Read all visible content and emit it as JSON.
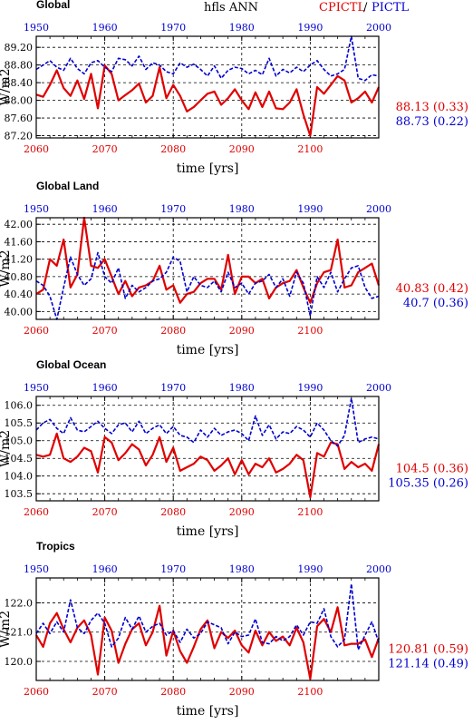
{
  "header": {
    "variable": "hfls ANN",
    "exp_label": "CPICTL",
    "slash": "/",
    "ctl_label": "PICTL"
  },
  "colors": {
    "exp": "#e00000",
    "ctl": "#0000d0"
  },
  "chart_data": [
    {
      "type": "line",
      "title": "Global",
      "xlabel": "time [yrs]",
      "ylabel": "W/m2",
      "x_bottom": [
        2060,
        2061,
        2062,
        2063,
        2064,
        2065,
        2066,
        2067,
        2068,
        2069,
        2070,
        2071,
        2072,
        2073,
        2074,
        2075,
        2076,
        2077,
        2078,
        2079,
        2080,
        2081,
        2082,
        2083,
        2084,
        2085,
        2086,
        2087,
        2088,
        2089,
        2090,
        2091,
        2092,
        2093,
        2094,
        2095,
        2096,
        2097,
        2098,
        2099,
        2100,
        2101,
        2102,
        2103,
        2104,
        2105,
        2106,
        2107,
        2108,
        2109,
        2110
      ],
      "x_top": [
        1950,
        1951,
        1952,
        1953,
        1954,
        1955,
        1956,
        1957,
        1958,
        1959,
        1960,
        1961,
        1962,
        1963,
        1964,
        1965,
        1966,
        1967,
        1968,
        1969,
        1970,
        1971,
        1972,
        1973,
        1974,
        1975,
        1976,
        1977,
        1978,
        1979,
        1980,
        1981,
        1982,
        1983,
        1984,
        1985,
        1986,
        1987,
        1988,
        1989,
        1990,
        1991,
        1992,
        1993,
        1994,
        1995,
        1996,
        1997,
        1998,
        1999,
        2000
      ],
      "xticks_bottom": [
        "2060",
        "2070",
        "2080",
        "2090",
        "2100"
      ],
      "xticks_top": [
        "1950",
        "1960",
        "1970",
        "1980",
        "1990",
        "2000"
      ],
      "yticks": [
        "87.20",
        "87.60",
        "88.00",
        "88.40",
        "88.80",
        "89.20"
      ],
      "ylim": [
        87.15,
        89.45
      ],
      "series": [
        {
          "name": "CPICTL",
          "values": [
            88.13,
            88.08,
            88.35,
            88.68,
            88.28,
            88.1,
            88.45,
            88.03,
            88.6,
            87.82,
            88.79,
            88.6,
            88.0,
            88.12,
            88.23,
            88.38,
            87.95,
            88.1,
            88.75,
            88.05,
            88.35,
            88.1,
            87.75,
            87.85,
            88.0,
            88.15,
            88.2,
            87.9,
            88.05,
            88.25,
            88.0,
            87.8,
            88.18,
            87.85,
            88.2,
            87.82,
            87.8,
            87.95,
            88.25,
            87.68,
            87.2,
            88.3,
            88.15,
            88.35,
            88.55,
            88.45,
            87.95,
            88.05,
            88.2,
            87.95,
            88.3
          ]
        },
        {
          "name": "PICTL",
          "values": [
            88.7,
            88.8,
            88.9,
            88.75,
            88.68,
            88.95,
            88.72,
            88.6,
            88.85,
            88.9,
            88.75,
            88.65,
            88.95,
            88.92,
            88.78,
            89.0,
            88.7,
            88.85,
            88.8,
            88.65,
            88.6,
            88.85,
            88.75,
            88.82,
            88.7,
            88.55,
            88.78,
            88.5,
            88.68,
            88.75,
            88.72,
            88.6,
            88.68,
            88.58,
            88.95,
            88.55,
            88.7,
            88.62,
            88.75,
            88.65,
            88.8,
            88.9,
            88.7,
            88.55,
            88.6,
            88.7,
            89.45,
            88.5,
            88.45,
            88.58,
            88.55
          ]
        }
      ],
      "stats": [
        {
          "series": "CPICTL",
          "text": "88.13 (0.33)"
        },
        {
          "series": "PICTL",
          "text": "88.73 (0.22)"
        }
      ]
    },
    {
      "type": "line",
      "title": "Global Land",
      "xlabel": "time [yrs]",
      "ylabel": "W/m2",
      "x_bottom": [
        2060,
        2061,
        2062,
        2063,
        2064,
        2065,
        2066,
        2067,
        2068,
        2069,
        2070,
        2071,
        2072,
        2073,
        2074,
        2075,
        2076,
        2077,
        2078,
        2079,
        2080,
        2081,
        2082,
        2083,
        2084,
        2085,
        2086,
        2087,
        2088,
        2089,
        2090,
        2091,
        2092,
        2093,
        2094,
        2095,
        2096,
        2097,
        2098,
        2099,
        2100,
        2101,
        2102,
        2103,
        2104,
        2105,
        2106,
        2107,
        2108,
        2109,
        2110
      ],
      "x_top": [
        1950,
        1951,
        1952,
        1953,
        1954,
        1955,
        1956,
        1957,
        1958,
        1959,
        1960,
        1961,
        1962,
        1963,
        1964,
        1965,
        1966,
        1967,
        1968,
        1969,
        1970,
        1971,
        1972,
        1973,
        1974,
        1975,
        1976,
        1977,
        1978,
        1979,
        1980,
        1981,
        1982,
        1983,
        1984,
        1985,
        1986,
        1987,
        1988,
        1989,
        1990,
        1991,
        1992,
        1993,
        1994,
        1995,
        1996,
        1997,
        1998,
        1999,
        2000
      ],
      "xticks_bottom": [
        "2060",
        "2070",
        "2080",
        "2090",
        "2100"
      ],
      "xticks_top": [
        "1950",
        "1960",
        "1970",
        "1980",
        "1990",
        "2000"
      ],
      "yticks": [
        "40.00",
        "40.40",
        "40.80",
        "41.20",
        "41.60",
        "42.00"
      ],
      "ylim": [
        39.82,
        42.15
      ],
      "series": [
        {
          "name": "CPICTL",
          "values": [
            40.4,
            40.5,
            41.2,
            41.05,
            41.65,
            40.55,
            40.85,
            42.15,
            41.05,
            41.0,
            41.2,
            40.8,
            40.4,
            40.7,
            40.35,
            40.55,
            40.6,
            40.7,
            41.05,
            40.5,
            40.6,
            40.2,
            40.4,
            40.45,
            40.65,
            40.75,
            40.75,
            40.5,
            41.3,
            40.4,
            40.8,
            40.8,
            40.65,
            40.75,
            40.3,
            40.55,
            40.65,
            40.7,
            40.95,
            40.55,
            40.2,
            40.65,
            40.9,
            40.95,
            41.65,
            40.55,
            40.6,
            40.9,
            41.0,
            41.1,
            40.6
          ]
        },
        {
          "name": "PICTL",
          "values": [
            40.7,
            40.6,
            40.35,
            39.82,
            40.55,
            41.25,
            40.85,
            40.6,
            40.75,
            41.35,
            40.8,
            40.65,
            41.0,
            40.3,
            40.6,
            40.45,
            40.55,
            40.7,
            40.75,
            40.9,
            41.25,
            41.15,
            40.45,
            40.8,
            40.6,
            40.55,
            40.7,
            40.45,
            40.9,
            40.55,
            40.65,
            40.4,
            40.65,
            40.7,
            40.85,
            40.55,
            40.75,
            40.35,
            40.9,
            40.65,
            39.9,
            40.8,
            40.55,
            40.9,
            40.45,
            40.75,
            41.0,
            41.05,
            40.55,
            40.3,
            40.35
          ]
        }
      ],
      "stats": [
        {
          "series": "CPICTL",
          "text": "40.83 (0.42)"
        },
        {
          "series": "PICTL",
          "text": "40.7 (0.36)"
        }
      ]
    },
    {
      "type": "line",
      "title": "Global Ocean",
      "xlabel": "time [yrs]",
      "ylabel": "W/m2",
      "x_bottom": [
        2060,
        2061,
        2062,
        2063,
        2064,
        2065,
        2066,
        2067,
        2068,
        2069,
        2070,
        2071,
        2072,
        2073,
        2074,
        2075,
        2076,
        2077,
        2078,
        2079,
        2080,
        2081,
        2082,
        2083,
        2084,
        2085,
        2086,
        2087,
        2088,
        2089,
        2090,
        2091,
        2092,
        2093,
        2094,
        2095,
        2096,
        2097,
        2098,
        2099,
        2100,
        2101,
        2102,
        2103,
        2104,
        2105,
        2106,
        2107,
        2108,
        2109,
        2110
      ],
      "x_top": [
        1950,
        1951,
        1952,
        1953,
        1954,
        1955,
        1956,
        1957,
        1958,
        1959,
        1960,
        1961,
        1962,
        1963,
        1964,
        1965,
        1966,
        1967,
        1968,
        1969,
        1970,
        1971,
        1972,
        1973,
        1974,
        1975,
        1976,
        1977,
        1978,
        1979,
        1980,
        1981,
        1982,
        1983,
        1984,
        1985,
        1986,
        1987,
        1988,
        1989,
        1990,
        1991,
        1992,
        1993,
        1994,
        1995,
        1996,
        1997,
        1998,
        1999,
        2000
      ],
      "xticks_bottom": [
        "2060",
        "2070",
        "2080",
        "2090",
        "2100"
      ],
      "xticks_top": [
        "1950",
        "1960",
        "1970",
        "1980",
        "1990",
        "2000"
      ],
      "yticks": [
        "103.5",
        "104.0",
        "104.5",
        "105.0",
        "105.5",
        "106.0"
      ],
      "ylim": [
        103.3,
        106.25
      ],
      "series": [
        {
          "name": "CPICTL",
          "values": [
            104.6,
            104.55,
            104.6,
            105.2,
            104.5,
            104.4,
            104.55,
            104.8,
            104.7,
            104.1,
            105.1,
            104.95,
            104.45,
            104.65,
            104.9,
            104.75,
            104.3,
            104.6,
            105.1,
            104.4,
            104.8,
            104.15,
            104.25,
            104.35,
            104.55,
            104.45,
            104.15,
            104.3,
            104.5,
            104.05,
            104.45,
            104.05,
            104.35,
            104.25,
            104.5,
            104.1,
            104.2,
            104.35,
            104.6,
            104.45,
            103.4,
            104.65,
            104.55,
            104.95,
            104.9,
            104.2,
            104.4,
            104.25,
            104.35,
            104.15,
            104.9
          ]
        },
        {
          "name": "PICTL",
          "values": [
            105.3,
            105.5,
            105.6,
            105.35,
            105.2,
            105.65,
            105.3,
            105.25,
            105.4,
            105.55,
            105.35,
            105.2,
            105.45,
            105.5,
            105.25,
            105.55,
            105.2,
            105.35,
            105.45,
            105.2,
            105.4,
            105.15,
            105.1,
            104.95,
            105.3,
            105.1,
            105.35,
            105.15,
            105.25,
            105.3,
            105.2,
            105.0,
            105.7,
            105.15,
            105.45,
            105.05,
            105.25,
            105.2,
            105.4,
            105.3,
            105.1,
            105.5,
            105.3,
            105.0,
            104.85,
            105.15,
            106.2,
            104.95,
            105.05,
            105.1,
            105.05
          ]
        }
      ],
      "stats": [
        {
          "series": "CPICTL",
          "text": "104.5 (0.36)"
        },
        {
          "series": "PICTL",
          "text": "105.35 (0.26)"
        }
      ]
    },
    {
      "type": "line",
      "title": "Tropics",
      "xlabel": "time [yrs]",
      "ylabel": "W/m2",
      "x_bottom": [
        2060,
        2061,
        2062,
        2063,
        2064,
        2065,
        2066,
        2067,
        2068,
        2069,
        2070,
        2071,
        2072,
        2073,
        2074,
        2075,
        2076,
        2077,
        2078,
        2079,
        2080,
        2081,
        2082,
        2083,
        2084,
        2085,
        2086,
        2087,
        2088,
        2089,
        2090,
        2091,
        2092,
        2093,
        2094,
        2095,
        2096,
        2097,
        2098,
        2099,
        2100,
        2101,
        2102,
        2103,
        2104,
        2105,
        2106,
        2107,
        2108,
        2109,
        2110
      ],
      "x_top": [
        1950,
        1951,
        1952,
        1953,
        1954,
        1955,
        1956,
        1957,
        1958,
        1959,
        1960,
        1961,
        1962,
        1963,
        1964,
        1965,
        1966,
        1967,
        1968,
        1969,
        1970,
        1971,
        1972,
        1973,
        1974,
        1975,
        1976,
        1977,
        1978,
        1979,
        1980,
        1981,
        1982,
        1983,
        1984,
        1985,
        1986,
        1987,
        1988,
        1989,
        1990,
        1991,
        1992,
        1993,
        1994,
        1995,
        1996,
        1997,
        1998,
        1999,
        2000
      ],
      "xticks_bottom": [
        "2060",
        "2070",
        "2080",
        "2090",
        "2100"
      ],
      "xticks_top": [
        "1950",
        "1960",
        "1970",
        "1980",
        "1990",
        "2000"
      ],
      "yticks": [
        "120.0",
        "121.0",
        "122.0"
      ],
      "ylim": [
        119.35,
        122.85
      ],
      "series": [
        {
          "name": "CPICTL",
          "values": [
            120.9,
            120.5,
            121.3,
            121.65,
            121.1,
            120.65,
            121.15,
            121.4,
            120.9,
            119.55,
            121.5,
            121.05,
            119.95,
            120.6,
            121.1,
            121.3,
            120.55,
            121.0,
            121.9,
            120.2,
            121.05,
            120.35,
            119.95,
            120.5,
            121.1,
            121.4,
            120.45,
            121.0,
            120.8,
            121.05,
            120.55,
            120.3,
            121.05,
            120.55,
            121.0,
            120.7,
            120.85,
            120.55,
            121.15,
            120.65,
            119.4,
            121.2,
            121.45,
            121.0,
            121.85,
            120.55,
            120.6,
            120.6,
            120.75,
            120.15,
            120.8
          ]
        },
        {
          "name": "PICTL",
          "values": [
            120.95,
            121.3,
            120.95,
            121.35,
            121.0,
            122.1,
            121.15,
            120.95,
            121.4,
            121.65,
            121.3,
            120.5,
            120.8,
            121.5,
            121.1,
            121.55,
            121.0,
            121.2,
            121.3,
            120.9,
            121.05,
            120.65,
            121.1,
            120.8,
            120.95,
            121.35,
            121.25,
            121.15,
            120.6,
            121.0,
            120.85,
            120.9,
            121.45,
            120.65,
            120.6,
            120.85,
            120.7,
            120.85,
            121.25,
            120.9,
            121.35,
            121.3,
            121.8,
            120.85,
            120.5,
            120.75,
            122.65,
            120.4,
            120.9,
            121.35,
            120.65
          ]
        }
      ],
      "stats": [
        {
          "series": "CPICTL",
          "text": "120.81 (0.59)"
        },
        {
          "series": "PICTL",
          "text": "121.14 (0.49)"
        }
      ]
    }
  ]
}
